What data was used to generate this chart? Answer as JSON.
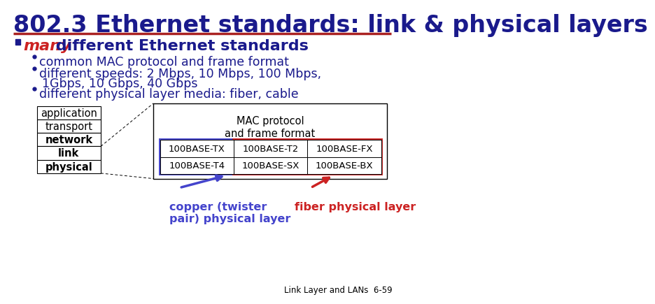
{
  "title": "802.3 Ethernet standards: link & physical layers",
  "title_color": "#1a1a8c",
  "title_fontsize": 24,
  "underline_color": "#aa2222",
  "bg_color": "#ffffff",
  "bullet1_many_color": "#cc2222",
  "bullet_color": "#1a1a8c",
  "sub_bullet_color": "#1a1a8c",
  "sub_bullets": [
    "common MAC protocol and frame format",
    "different speeds: 2 Mbps, 10 Mbps, 100 Mbps,",
    "1Gbps, 10 Gbps, 40 Gbps",
    "different physical layer media: fiber, cable"
  ],
  "layers": [
    "application",
    "transport",
    "network",
    "link",
    "physical"
  ],
  "grid_cells": [
    [
      "100BASE-TX",
      "100BASE-T2",
      "100BASE-FX"
    ],
    [
      "100BASE-T4",
      "100BASE-SX",
      "100BASE-BX"
    ]
  ],
  "mac_label": "MAC protocol\nand frame format",
  "copper_label": "copper (twister\npair) physical layer",
  "fiber_label": "fiber physical layer",
  "copper_color": "#4444cc",
  "fiber_color": "#cc2222",
  "footnote": "Link Layer and LANs  6-59"
}
